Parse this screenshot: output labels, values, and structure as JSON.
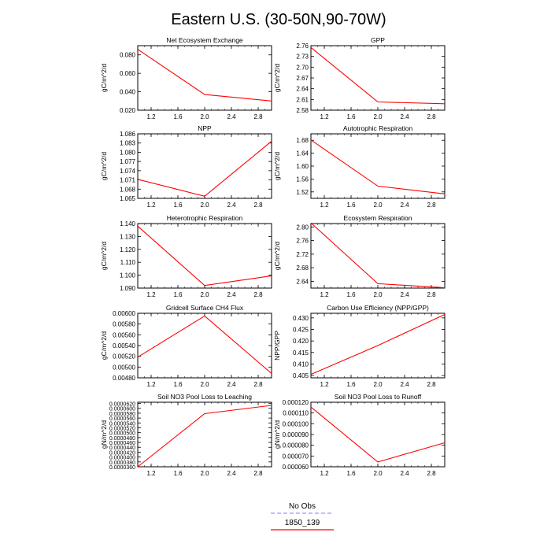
{
  "figure": {
    "title": "Eastern U.S. (30-50N,90-70W)"
  },
  "legend": {
    "items": [
      {
        "label": "No Obs",
        "color": "#9999ff",
        "dash": true
      },
      {
        "label": "1850_139",
        "color": "#ff0000",
        "dash": false
      }
    ]
  },
  "chart_data": [
    {
      "type": "line",
      "title": "Net Ecosystem Exchange",
      "ylabel": "gC/m^2/d",
      "xlim": [
        1,
        3
      ],
      "xticks": [
        "1.2",
        "1.6",
        "2.0",
        "2.4",
        "2.8"
      ],
      "ylim": [
        0.02,
        0.09
      ],
      "yticks": [
        "0.020",
        "0.040",
        "0.060",
        "0.080"
      ],
      "series": [
        {
          "x": [
            1,
            2,
            3
          ],
          "y": [
            0.086,
            0.037,
            0.03
          ],
          "color": "#ff0000"
        }
      ]
    },
    {
      "type": "line",
      "title": "GPP",
      "ylabel": "gC/m^2/d",
      "xlim": [
        1,
        3
      ],
      "xticks": [
        "1.2",
        "1.6",
        "2.0",
        "2.4",
        "2.8"
      ],
      "ylim": [
        2.58,
        2.76
      ],
      "yticks": [
        "2.58",
        "2.61",
        "2.64",
        "2.67",
        "2.70",
        "2.73",
        "2.76"
      ],
      "series": [
        {
          "x": [
            1,
            2,
            3
          ],
          "y": [
            2.755,
            2.603,
            2.598
          ],
          "color": "#ff0000"
        }
      ]
    },
    {
      "type": "line",
      "title": "NPP",
      "ylabel": "gC/m^2/d",
      "xlim": [
        1,
        3
      ],
      "xticks": [
        "1.2",
        "1.6",
        "2.0",
        "2.4",
        "2.8"
      ],
      "ylim": [
        1.065,
        1.086
      ],
      "yticks": [
        "1.065",
        "1.068",
        "1.071",
        "1.074",
        "1.077",
        "1.080",
        "1.083",
        "1.086"
      ],
      "series": [
        {
          "x": [
            1,
            2,
            3
          ],
          "y": [
            1.0712,
            1.0657,
            1.0836
          ],
          "color": "#ff0000"
        }
      ]
    },
    {
      "type": "line",
      "title": "Autotrophic Respiration",
      "ylabel": "gC/m^2/d",
      "xlim": [
        1,
        3
      ],
      "xticks": [
        "1.2",
        "1.6",
        "2.0",
        "2.4",
        "2.8"
      ],
      "ylim": [
        1.5,
        1.7
      ],
      "yticks": [
        "1.52",
        "1.56",
        "1.60",
        "1.64",
        "1.68"
      ],
      "series": [
        {
          "x": [
            1,
            2,
            3
          ],
          "y": [
            1.681,
            1.538,
            1.514
          ],
          "color": "#ff0000"
        }
      ]
    },
    {
      "type": "line",
      "title": "Heterotrophic Respiration",
      "ylabel": "gC/m^2/d",
      "xlim": [
        1,
        3
      ],
      "xticks": [
        "1.2",
        "1.6",
        "2.0",
        "2.4",
        "2.8"
      ],
      "ylim": [
        1.09,
        1.14
      ],
      "yticks": [
        "1.090",
        "1.100",
        "1.110",
        "1.120",
        "1.130",
        "1.140"
      ],
      "series": [
        {
          "x": [
            1,
            2,
            3
          ],
          "y": [
            1.138,
            1.092,
            1.0995
          ],
          "color": "#ff0000"
        }
      ]
    },
    {
      "type": "line",
      "title": "Ecosystem Respiration",
      "ylabel": "gC/m^2/d",
      "xlim": [
        1,
        3
      ],
      "xticks": [
        "1.2",
        "1.6",
        "2.0",
        "2.4",
        "2.8"
      ],
      "ylim": [
        2.62,
        2.81
      ],
      "yticks": [
        "2.64",
        "2.68",
        "2.72",
        "2.76",
        "2.80"
      ],
      "series": [
        {
          "x": [
            1,
            2,
            3
          ],
          "y": [
            2.812,
            2.633,
            2.621
          ],
          "color": "#ff0000"
        }
      ]
    },
    {
      "type": "line",
      "title": "Gridcell Surface CH4 Flux",
      "ylabel": "gC/m^2/d",
      "xlim": [
        1,
        3
      ],
      "xticks": [
        "1.2",
        "1.6",
        "2.0",
        "2.4",
        "2.8"
      ],
      "ylim": [
        0.0048,
        0.006
      ],
      "yticks": [
        "0.00480",
        "0.00500",
        "0.00520",
        "0.00540",
        "0.00560",
        "0.00580",
        "0.00600"
      ],
      "series": [
        {
          "x": [
            1,
            2,
            3
          ],
          "y": [
            0.005185,
            0.00595,
            0.00488
          ],
          "color": "#ff0000"
        }
      ]
    },
    {
      "type": "line",
      "title": "Carbon Use Efficiency (NPP/GPP)",
      "ylabel": "NPP/GPP",
      "xlim": [
        1,
        3
      ],
      "xticks": [
        "1.2",
        "1.6",
        "2.0",
        "2.4",
        "2.8"
      ],
      "ylim": [
        0.404,
        0.432
      ],
      "yticks": [
        "0.405",
        "0.410",
        "0.415",
        "0.420",
        "0.425",
        "0.430"
      ],
      "series": [
        {
          "x": [
            1,
            2,
            3
          ],
          "y": [
            0.4055,
            0.418,
            0.4315
          ],
          "color": "#ff0000"
        }
      ]
    },
    {
      "type": "line",
      "title": "Soil NO3 Pool Loss to Leaching",
      "ylabel": "gN/m^2/d",
      "xlim": [
        1,
        3
      ],
      "xticks": [
        "1.2",
        "1.6",
        "2.0",
        "2.4",
        "2.8"
      ],
      "ylim": [
        3.6e-05,
        6.25e-05
      ],
      "yticks": [
        "0.0000360",
        "0.0000380",
        "0.0000400",
        "0.0000420",
        "0.0000440",
        "0.0000460",
        "0.0000480",
        "0.0000500",
        "0.0000520",
        "0.0000540",
        "0.0000560",
        "0.0000580",
        "0.0000600",
        "0.0000620"
      ],
      "series": [
        {
          "x": [
            1,
            2,
            3
          ],
          "y": [
            3.6e-05,
            5.78e-05,
            6.12e-05
          ],
          "color": "#ff0000"
        }
      ]
    },
    {
      "type": "line",
      "title": "Soil NO3 Pool Loss to Runoff",
      "ylabel": "gN/m^2/d",
      "xlim": [
        1,
        3
      ],
      "xticks": [
        "1.2",
        "1.6",
        "2.0",
        "2.4",
        "2.8"
      ],
      "ylim": [
        6e-05,
        0.00012
      ],
      "yticks": [
        "0.000060",
        "0.000070",
        "0.000080",
        "0.000090",
        "0.000100",
        "0.000110",
        "0.000120"
      ],
      "series": [
        {
          "x": [
            1,
            2,
            3
          ],
          "y": [
            0.0001155,
            6.45e-05,
            8.23e-05
          ],
          "color": "#ff0000"
        }
      ]
    }
  ]
}
